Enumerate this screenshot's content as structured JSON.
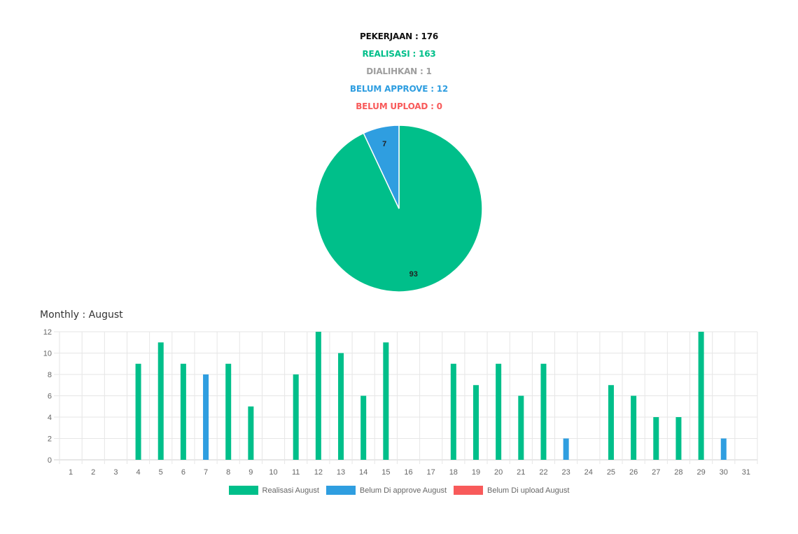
{
  "summary": {
    "pekerjaan": "PEKERJAAN : 176",
    "realisasi": "REALISASI : 163",
    "dialihkan": "DIALIHKAN : 1",
    "belum_approve": "BELUM APPROVE : 12",
    "belum_upload": "BELUM UPLOAD : 0"
  },
  "colors": {
    "black": "#111111",
    "green": "#00bf8a",
    "gray": "#9e9e9e",
    "blue": "#2f9ee0",
    "red": "#f85a5a"
  },
  "monthly": {
    "title": "Monthly : August"
  },
  "chart_data": [
    {
      "type": "pie",
      "slices": [
        {
          "label": "93",
          "value": 93,
          "color": "#00bf8a"
        },
        {
          "label": "7",
          "value": 7,
          "color": "#2f9ee0"
        }
      ]
    },
    {
      "type": "bar",
      "categories": [
        "1",
        "2",
        "3",
        "4",
        "5",
        "6",
        "7",
        "8",
        "9",
        "10",
        "11",
        "12",
        "13",
        "14",
        "15",
        "16",
        "17",
        "18",
        "19",
        "20",
        "21",
        "22",
        "23",
        "24",
        "25",
        "26",
        "27",
        "28",
        "29",
        "30",
        "31"
      ],
      "ylim": [
        0,
        12
      ],
      "yticks": [
        0,
        2,
        4,
        6,
        8,
        10,
        12
      ],
      "grid": true,
      "legend_position": "bottom",
      "series": [
        {
          "name": "Realisasi August",
          "color": "#00bf8a",
          "values": [
            0,
            0,
            0,
            9,
            11,
            9,
            0,
            9,
            5,
            0,
            8,
            12,
            10,
            6,
            11,
            0,
            0,
            9,
            7,
            9,
            6,
            9,
            0,
            0,
            7,
            6,
            4,
            4,
            12,
            0,
            0
          ]
        },
        {
          "name": "Belum Di approve August",
          "color": "#2f9ee0",
          "values": [
            0,
            0,
            0,
            0,
            0,
            0,
            8,
            0,
            0,
            0,
            0,
            0,
            0,
            0,
            0,
            0,
            0,
            0,
            0,
            0,
            0,
            0,
            2,
            0,
            0,
            0,
            0,
            0,
            0,
            2,
            0
          ]
        },
        {
          "name": "Belum Di upload August",
          "color": "#f85a5a",
          "values": [
            0,
            0,
            0,
            0,
            0,
            0,
            0,
            0,
            0,
            0,
            0,
            0,
            0,
            0,
            0,
            0,
            0,
            0,
            0,
            0,
            0,
            0,
            0,
            0,
            0,
            0,
            0,
            0,
            0,
            0,
            0
          ]
        }
      ]
    }
  ]
}
